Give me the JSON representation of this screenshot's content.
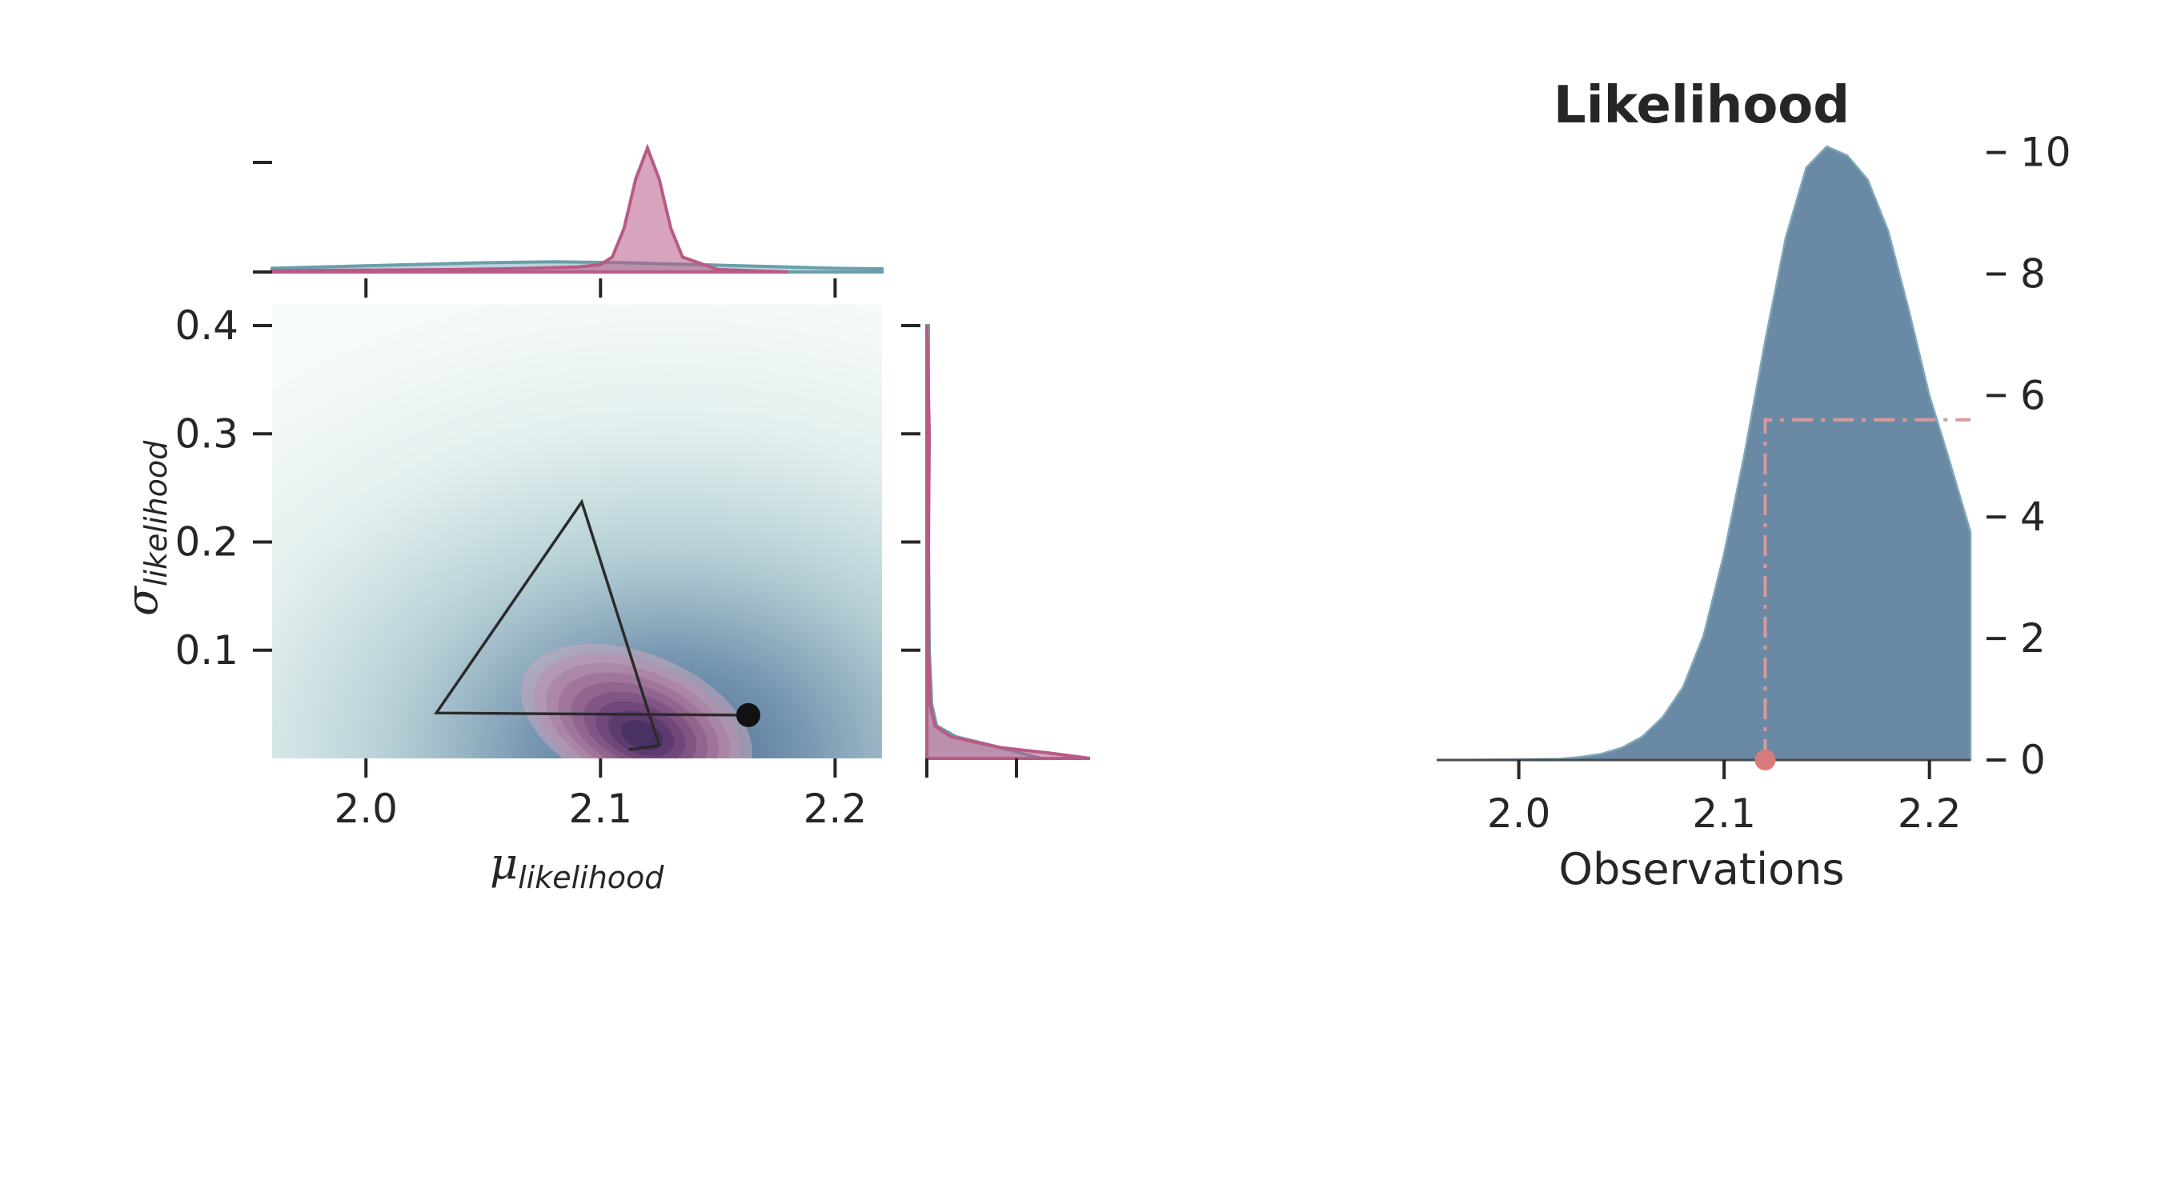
{
  "chart_data": [
    {
      "type": "joint_kde",
      "panel": "posterior",
      "xlabel": {
        "symbol": "μ",
        "subscript": "likelihood"
      },
      "ylabel": {
        "symbol": "σ",
        "subscript": "likelihood"
      },
      "xlim": [
        1.96,
        2.22
      ],
      "ylim": [
        0.0,
        0.42
      ],
      "xticks": [
        2.0,
        2.1,
        2.2
      ],
      "xtick_labels": [
        "2.0",
        "2.1",
        "2.2"
      ],
      "yticks": [
        0.1,
        0.2,
        0.3,
        0.4
      ],
      "ytick_labels": [
        "0.1",
        "0.2",
        "0.3",
        "0.4"
      ],
      "colors": {
        "prior": "#6a9eac",
        "posterior": "#b85a86",
        "trace": "#2b2b2b",
        "point": "#111111"
      },
      "posterior_peak": {
        "mu": 2.118,
        "sigma": 0.02
      },
      "optimizer_path": [
        {
          "mu": 2.163,
          "sigma": 0.04
        },
        {
          "mu": 2.03,
          "sigma": 0.042
        },
        {
          "mu": 2.092,
          "sigma": 0.237
        },
        {
          "mu": 2.125,
          "sigma": 0.012
        },
        {
          "mu": 2.112,
          "sigma": 0.008
        }
      ],
      "current_point": {
        "mu": 2.163,
        "sigma": 0.04
      },
      "marginals": {
        "mu": {
          "prior": {
            "x": [
              1.96,
              1.99,
              2.02,
              2.05,
              2.08,
              2.11,
              2.14,
              2.17,
              2.2,
              2.22
            ],
            "density": [
              0.03,
              0.045,
              0.06,
              0.075,
              0.082,
              0.075,
              0.06,
              0.045,
              0.03,
              0.025
            ]
          },
          "posterior": {
            "x": [
              1.96,
              2.0,
              2.04,
              2.07,
              2.09,
              2.1,
              2.105,
              2.11,
              2.115,
              2.12,
              2.125,
              2.13,
              2.135,
              2.15,
              2.18
            ],
            "density": [
              0.01,
              0.015,
              0.02,
              0.03,
              0.04,
              0.06,
              0.12,
              0.35,
              0.75,
              1.0,
              0.75,
              0.35,
              0.12,
              0.02,
              0.0
            ]
          }
        },
        "sigma": {
          "prior": {
            "y": [
              0.0,
              0.01,
              0.02,
              0.03,
              0.05,
              0.1,
              0.2,
              0.3,
              0.4
            ],
            "density": [
              0.7,
              0.45,
              0.18,
              0.06,
              0.03,
              0.015,
              0.01,
              0.01,
              0.01
            ]
          },
          "posterior": {
            "y": [
              0.0,
              0.005,
              0.01,
              0.02,
              0.03,
              0.05,
              0.1,
              0.2,
              0.3,
              0.4
            ],
            "density": [
              1.0,
              0.75,
              0.45,
              0.15,
              0.05,
              0.02,
              0.01,
              0.01,
              0.015,
              0.0
            ]
          }
        }
      }
    },
    {
      "type": "area",
      "panel": "likelihood",
      "title": "Likelihood",
      "xlabel": "Observations",
      "ylabel": "",
      "xlim": [
        1.96,
        2.22
      ],
      "ylim": [
        0,
        10.1
      ],
      "xticks": [
        2.0,
        2.1,
        2.2
      ],
      "xtick_labels": [
        "2.0",
        "2.1",
        "2.2"
      ],
      "yticks": [
        0,
        2,
        4,
        6,
        8,
        10
      ],
      "ytick_labels": [
        "0",
        "2",
        "4",
        "6",
        "8",
        "10"
      ],
      "yaxis_side": "right",
      "color": "#5d7f9c",
      "x": [
        1.96,
        2.0,
        2.02,
        2.03,
        2.04,
        2.05,
        2.06,
        2.07,
        2.08,
        2.09,
        2.1,
        2.11,
        2.12,
        2.13,
        2.14,
        2.15,
        2.16,
        2.165,
        2.17,
        2.18,
        2.19,
        2.2,
        2.21,
        2.22
      ],
      "y": [
        0.0,
        0.01,
        0.02,
        0.05,
        0.1,
        0.2,
        0.38,
        0.7,
        1.2,
        2.05,
        3.4,
        5.05,
        6.9,
        8.6,
        9.75,
        10.1,
        9.95,
        9.75,
        9.55,
        8.7,
        7.4,
        6.0,
        4.9,
        3.75
      ],
      "marker": {
        "x": 2.12,
        "y": 0.0,
        "color": "#d97b7b"
      },
      "guides": {
        "x": 2.12,
        "y": 5.6,
        "color": "#d99a9a",
        "style": "dash-dot"
      }
    }
  ]
}
